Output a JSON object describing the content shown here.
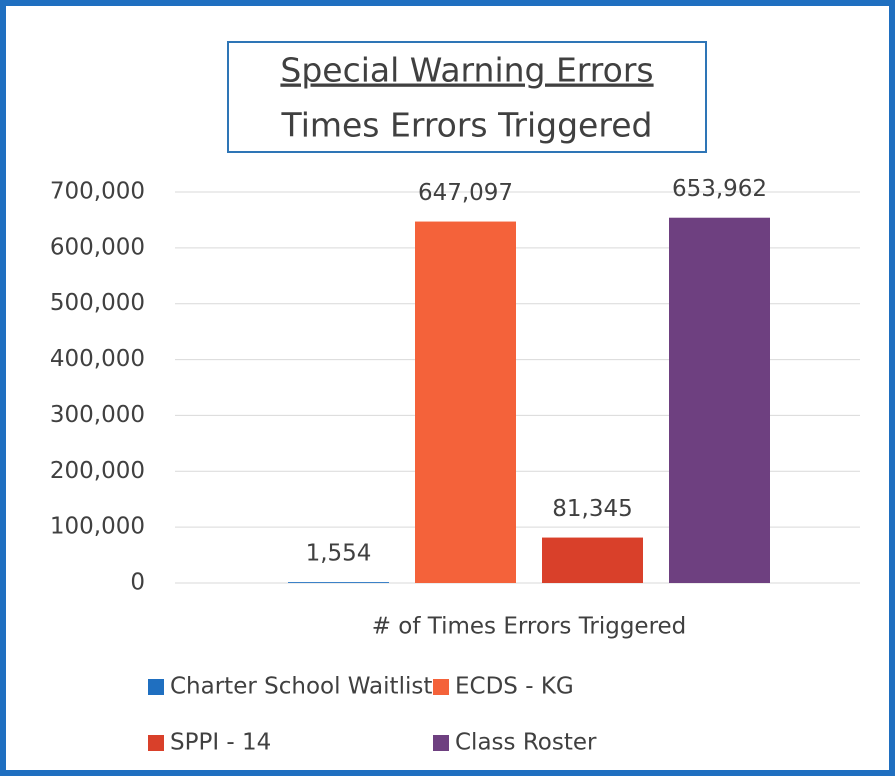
{
  "chart_data": {
    "type": "bar",
    "title": "Special Warning Errors",
    "subtitle": "Times Errors Triggered",
    "categories": [
      "# of Times Errors Triggered"
    ],
    "series": [
      {
        "name": "Charter School Waitlist",
        "color": "#1f6fc0",
        "values": [
          1554
        ],
        "value_labels": [
          "1,554"
        ]
      },
      {
        "name": "ECDS - KG",
        "color": "#f4623a",
        "values": [
          647097
        ],
        "value_labels": [
          "647,097"
        ]
      },
      {
        "name": "SPPI - 14",
        "color": "#d9402a",
        "values": [
          81345
        ],
        "value_labels": [
          "81,345"
        ]
      },
      {
        "name": "Class Roster",
        "color": "#6e4080",
        "values": [
          653962
        ],
        "value_labels": [
          "653,962"
        ]
      }
    ],
    "ylim": [
      0,
      700000
    ],
    "yticks": [
      {
        "value": 0,
        "label": "0"
      },
      {
        "value": 100000,
        "label": "100,000"
      },
      {
        "value": 200000,
        "label": "200,000"
      },
      {
        "value": 300000,
        "label": "300,000"
      },
      {
        "value": 400000,
        "label": "400,000"
      },
      {
        "value": 500000,
        "label": "500,000"
      },
      {
        "value": 600000,
        "label": "600,000"
      },
      {
        "value": 700000,
        "label": "700,000"
      }
    ],
    "grid": true,
    "legend": "bottom"
  }
}
